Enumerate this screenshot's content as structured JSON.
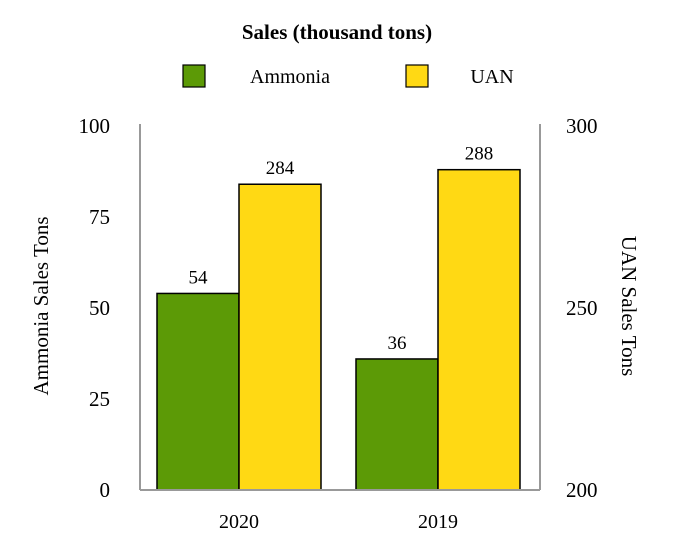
{
  "chart_data": {
    "type": "bar",
    "title": "Sales (thousand tons)",
    "categories": [
      "2020",
      "2019"
    ],
    "series": [
      {
        "name": "Ammonia",
        "axis": "left",
        "color": "#5c9a06",
        "values": [
          54,
          36
        ]
      },
      {
        "name": "UAN",
        "axis": "right",
        "color": "#ffd914",
        "values": [
          284,
          288
        ]
      }
    ],
    "ylabel": "Ammonia Sales Tons",
    "ylim": [
      0,
      100
    ],
    "yticks": [
      "0",
      "25",
      "50",
      "75",
      "100"
    ],
    "y2label": "UAN Sales Tons",
    "y2lim": [
      200,
      300
    ],
    "y2ticks": [
      "200",
      "250",
      "300"
    ],
    "legend": "top",
    "grid": false
  }
}
